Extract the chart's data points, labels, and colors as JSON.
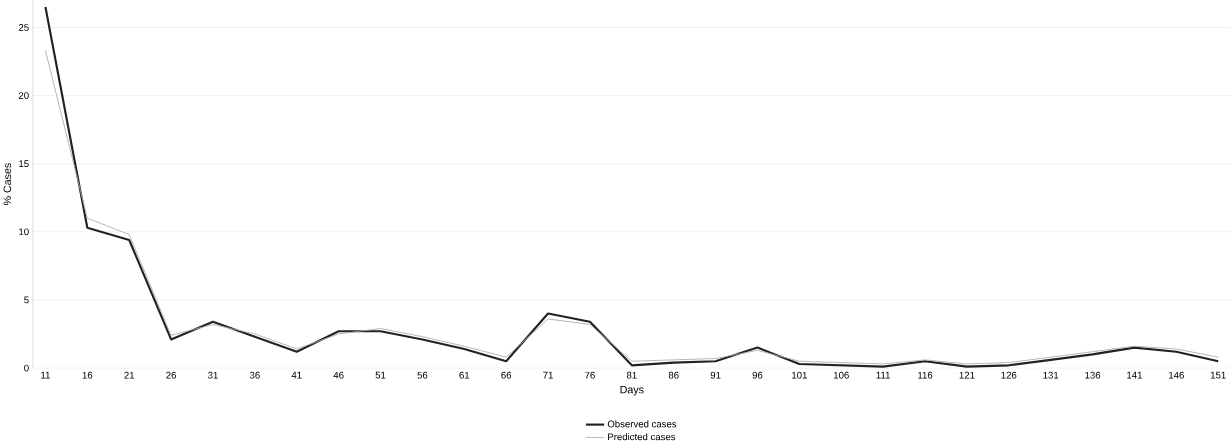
{
  "chart_data": {
    "type": "line",
    "xlabel": "Days",
    "ylabel": "% Cases",
    "categories": [
      "11",
      "16",
      "21",
      "26",
      "31",
      "36",
      "41",
      "46",
      "51",
      "56",
      "61",
      "66",
      "71",
      "76",
      "81",
      "86",
      "91",
      "96",
      "101",
      "106",
      "111",
      "116",
      "121",
      "126",
      "131",
      "136",
      "141",
      "146",
      "151"
    ],
    "series": [
      {
        "name": "Observed cases",
        "color": "#222222",
        "values": [
          26.5,
          10.3,
          9.4,
          2.1,
          3.4,
          2.3,
          1.2,
          2.7,
          2.7,
          2.1,
          1.4,
          0.5,
          4.0,
          3.4,
          0.2,
          0.4,
          0.5,
          1.5,
          0.3,
          0.2,
          0.1,
          0.5,
          0.1,
          0.2,
          0.6,
          1.0,
          1.5,
          1.2,
          0.5
        ]
      },
      {
        "name": "Predicted cases",
        "color": "#aaaaaa",
        "values": [
          23.3,
          11.0,
          9.8,
          2.4,
          3.2,
          2.5,
          1.4,
          2.5,
          2.9,
          2.3,
          1.6,
          0.8,
          3.6,
          3.2,
          0.5,
          0.6,
          0.7,
          1.3,
          0.5,
          0.4,
          0.3,
          0.6,
          0.3,
          0.4,
          0.8,
          1.2,
          1.6,
          1.4,
          0.8
        ]
      }
    ],
    "ylim": [
      0,
      27
    ],
    "yticks": [
      0,
      5,
      10,
      15,
      20,
      25
    ],
    "grid": "y",
    "legend": "bottom",
    "marker": "none",
    "line_style": "solid"
  }
}
